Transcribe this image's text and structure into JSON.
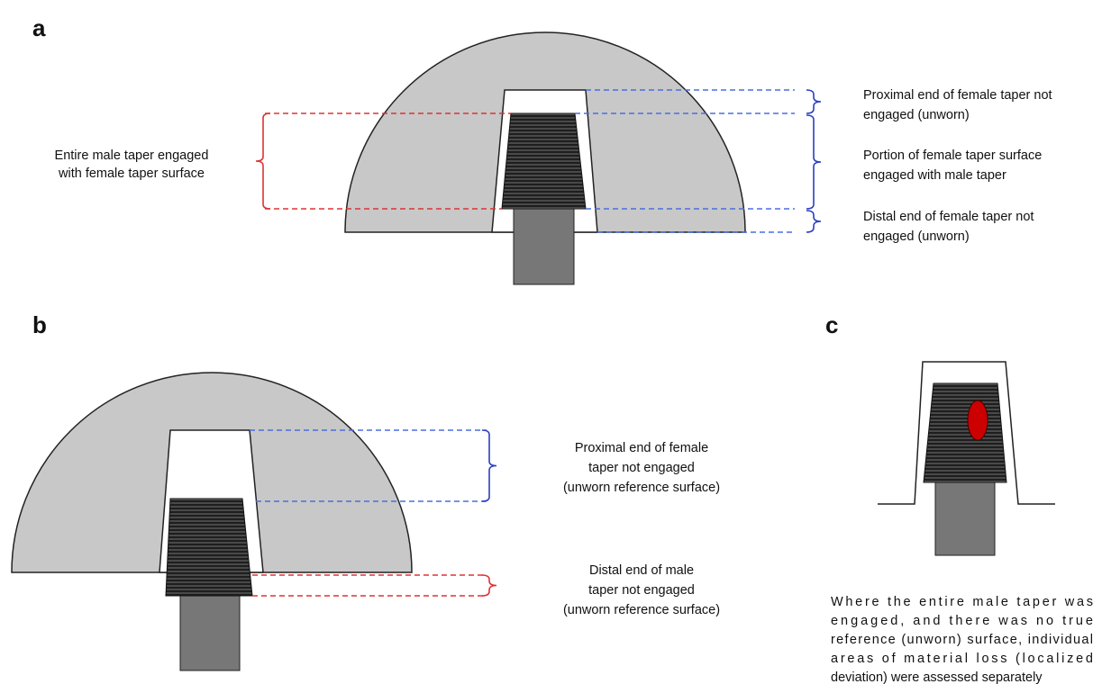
{
  "panels": {
    "a": {
      "label": "a",
      "male_note": [
        "Entire male taper engaged",
        "with female taper surface"
      ],
      "female_notes": [
        [
          "Proximal end of female taper not",
          "engaged (unworn)"
        ],
        [
          "Portion of female taper surface",
          "engaged with male taper"
        ],
        [
          "Distal end of female taper not",
          "engaged (unworn)"
        ]
      ]
    },
    "b": {
      "label": "b",
      "proximal_note": [
        "Proximal end of female",
        "taper not engaged",
        "(unworn reference surface)"
      ],
      "distal_note": [
        "Distal end of male",
        "taper not engaged",
        "(unworn reference surface)"
      ]
    },
    "c": {
      "label": "c",
      "note": [
        "Where the entire male taper was",
        "engaged, and there was no true",
        "reference (unworn) surface, individual",
        "areas of material loss (localized",
        "deviation) were assessed separately"
      ]
    }
  }
}
